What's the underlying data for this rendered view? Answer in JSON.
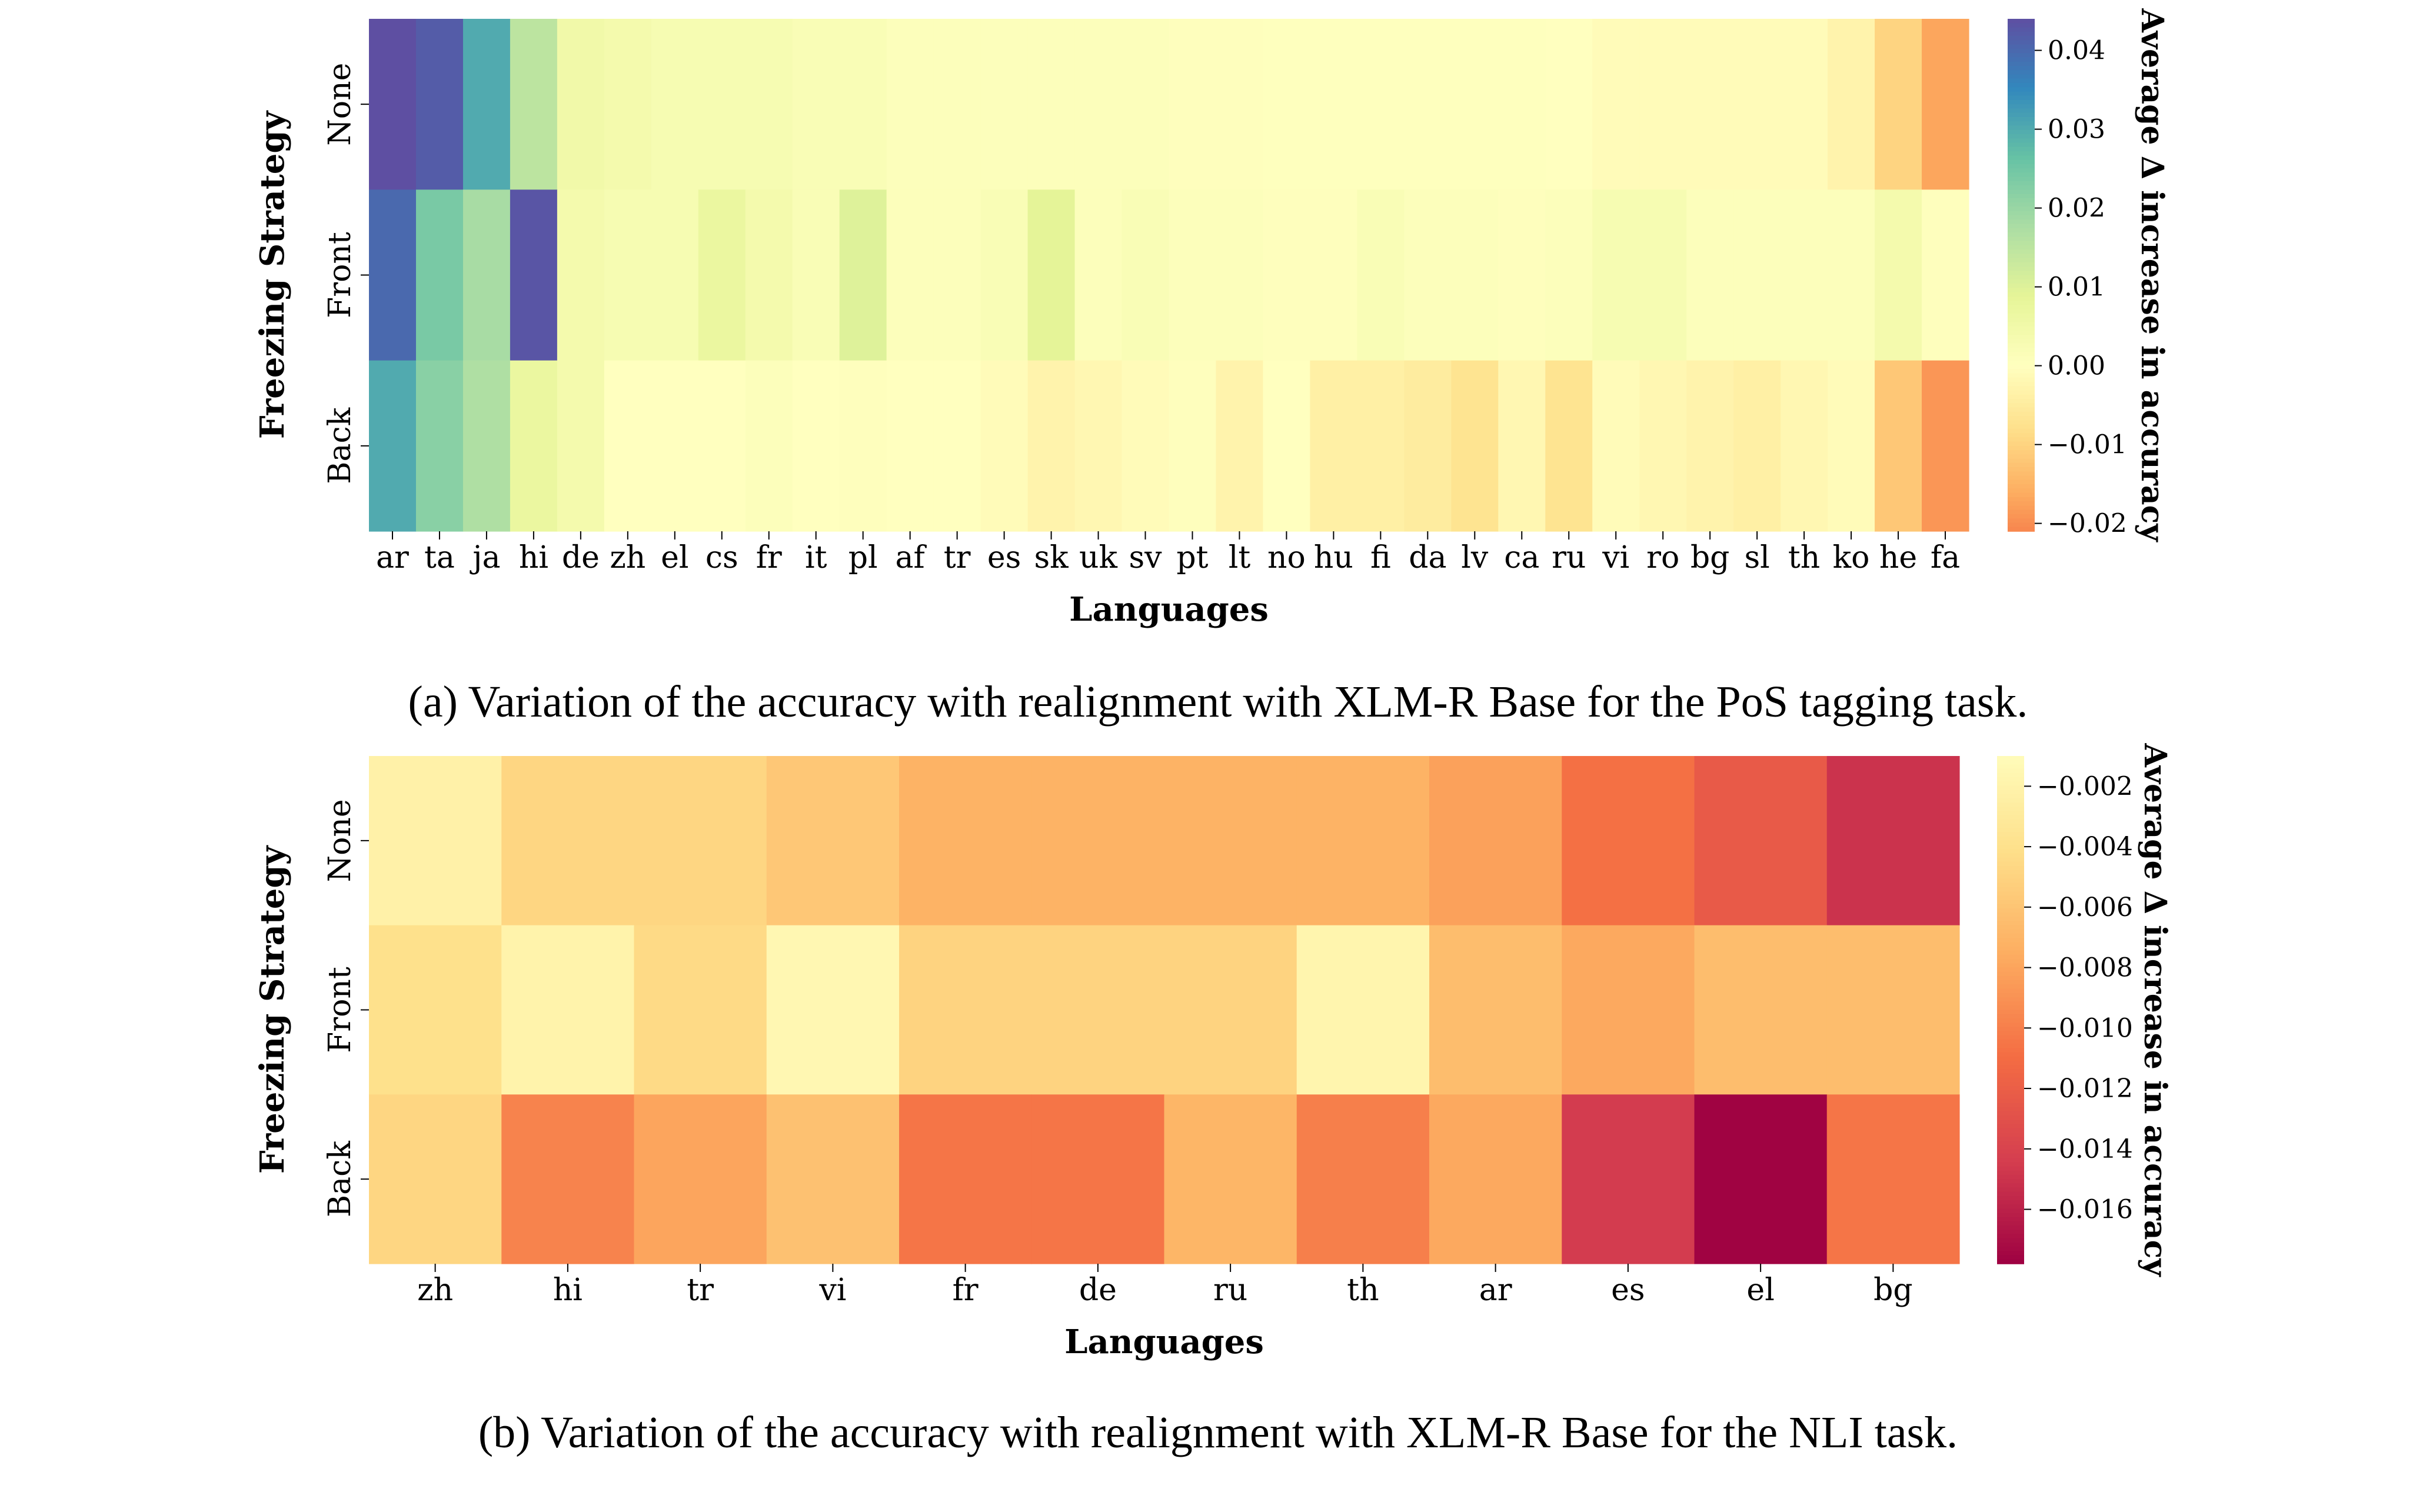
{
  "chart_data": [
    {
      "type": "heatmap",
      "caption": "(a) Variation of the accuracy with realignment with XLM-R Base for the PoS tagging task.",
      "xlabel": "Languages",
      "ylabel": "Freezing Strategy",
      "rows": [
        "None",
        "Front",
        "Back"
      ],
      "columns": [
        "ar",
        "ta",
        "ja",
        "hi",
        "de",
        "zh",
        "el",
        "cs",
        "fr",
        "it",
        "pl",
        "af",
        "tr",
        "es",
        "sk",
        "uk",
        "sv",
        "pt",
        "lt",
        "no",
        "hu",
        "fi",
        "da",
        "lv",
        "ca",
        "ru",
        "vi",
        "ro",
        "bg",
        "sl",
        "th",
        "ko",
        "he",
        "fa"
      ],
      "values": [
        [
          0.044,
          0.042,
          0.03,
          0.015,
          0.005,
          0.004,
          0.003,
          0.003,
          0.003,
          0.002,
          0.002,
          0.001,
          0.001,
          0.001,
          0.001,
          0.001,
          0.001,
          0.0005,
          0.0005,
          0.0003,
          0.0002,
          0.0003,
          0.0003,
          0.0003,
          0.0002,
          0.0,
          -0.001,
          -0.001,
          -0.001,
          -0.001,
          -0.001,
          -0.003,
          -0.01,
          -0.017
        ],
        [
          0.04,
          0.024,
          0.018,
          0.043,
          0.004,
          0.003,
          0.003,
          0.007,
          0.004,
          0.002,
          0.01,
          0.001,
          0.001,
          0.002,
          0.009,
          0.001,
          0.002,
          0.001,
          0.001,
          0.0005,
          0.0005,
          0.002,
          0.001,
          0.001,
          0.0005,
          0.001,
          0.003,
          0.003,
          0.001,
          0.001,
          0.001,
          0.001,
          0.004,
          0.0005
        ],
        [
          0.03,
          0.022,
          0.017,
          0.007,
          0.004,
          0.0,
          0.0,
          0.0,
          0.001,
          0.0,
          0.0005,
          0.0,
          0.0,
          -0.001,
          -0.003,
          -0.002,
          -0.001,
          0.0005,
          -0.003,
          0.0,
          -0.004,
          -0.004,
          -0.005,
          -0.007,
          -0.002,
          -0.007,
          -0.001,
          -0.002,
          -0.003,
          -0.004,
          -0.002,
          -0.001,
          -0.012,
          -0.019
        ]
      ],
      "colorbar": {
        "label": "Average Δ increase in accuracy",
        "min": -0.021,
        "max": 0.044,
        "ticks": [
          "−0.02",
          "−0.01",
          "0.00",
          "0.01",
          "0.02",
          "0.03",
          "0.04"
        ],
        "tick_values": [
          -0.02,
          -0.01,
          0.0,
          0.01,
          0.02,
          0.03,
          0.04
        ]
      },
      "colormap": "Spectral"
    },
    {
      "type": "heatmap",
      "caption": "(b) Variation of the accuracy with realignment with XLM-R Base for the NLI task.",
      "xlabel": "Languages",
      "ylabel": "Freezing Strategy",
      "rows": [
        "None",
        "Front",
        "Back"
      ],
      "columns": [
        "zh",
        "hi",
        "tr",
        "vi",
        "fr",
        "de",
        "ru",
        "th",
        "ar",
        "es",
        "el",
        "bg"
      ],
      "values": [
        [
          -0.0022,
          -0.0048,
          -0.0048,
          -0.0058,
          -0.0072,
          -0.0072,
          -0.0072,
          -0.0072,
          -0.0082,
          -0.0108,
          -0.0123,
          -0.015
        ],
        [
          -0.004,
          -0.002,
          -0.0045,
          -0.0015,
          -0.005,
          -0.005,
          -0.005,
          -0.0018,
          -0.0065,
          -0.0078,
          -0.0065,
          -0.0065
        ],
        [
          -0.0048,
          -0.0098,
          -0.008,
          -0.0062,
          -0.0105,
          -0.0105,
          -0.007,
          -0.01,
          -0.0078,
          -0.0145,
          -0.0177,
          -0.0105
        ]
      ],
      "colorbar": {
        "label": "Average Δ increase in accuracy",
        "min": -0.0178,
        "max": -0.001,
        "ticks": [
          "−0.016",
          "−0.014",
          "−0.012",
          "−0.010",
          "−0.008",
          "−0.006",
          "−0.004",
          "−0.002"
        ],
        "tick_values": [
          -0.016,
          -0.014,
          -0.012,
          -0.01,
          -0.008,
          -0.006,
          -0.004,
          -0.002
        ]
      },
      "colormap": "Spectral (lower half)"
    }
  ]
}
